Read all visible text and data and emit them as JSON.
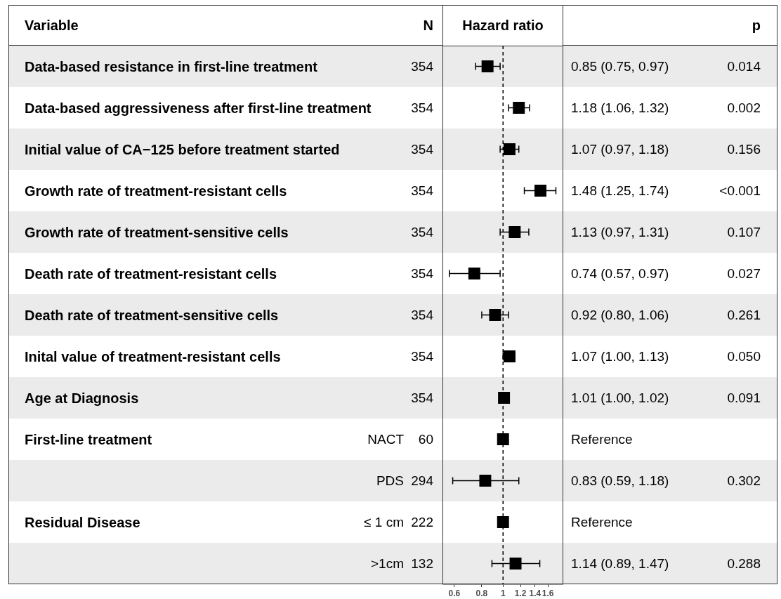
{
  "chart_data": {
    "type": "scatter",
    "orientation": "horizontal",
    "xlabel": "Hazard ratio",
    "ylabel": "Variable",
    "categories": [
      "Data-based resistance in first-line treatment",
      "Data-based aggressiveness after first-line treatment",
      "Initial value of CA−125 before treatment started",
      "Growth rate of treatment-resistant cells",
      "Growth rate of treatment-sensitive cells",
      "Death rate of treatment-resistant cells",
      "Death rate of treatment-sensitive cells",
      "Inital value of treatment-resistant cells",
      "Age at Diagnosis",
      "First-line treatment",
      null,
      "Residual Disease",
      null
    ],
    "y2_categories": [
      null,
      null,
      null,
      null,
      null,
      null,
      null,
      null,
      null,
      "NACT",
      "PDS",
      "≤ 1 cm",
      ">1cm"
    ],
    "series": [
      {
        "color": "#000000",
        "values": [
          0.85,
          1.18,
          1.07,
          1.48,
          1.13,
          0.74,
          0.92,
          1.07,
          1.01,
          1,
          0.83,
          1,
          1.14
        ],
        "errors": [
          [
            0.75,
            0.97
          ],
          [
            1.06,
            1.32
          ],
          [
            0.97,
            1.18
          ],
          [
            1.25,
            1.74
          ],
          [
            0.97,
            1.31
          ],
          [
            0.57,
            0.97
          ],
          [
            0.8,
            1.06
          ],
          [
            1.0,
            1.13
          ],
          [
            1.0,
            1.02
          ],
          null,
          [
            0.59,
            1.18
          ],
          null,
          [
            0.89,
            1.47
          ]
        ]
      }
    ],
    "cell_labels": [
      [
        "354",
        "0.85 (0.75, 0.97)",
        "0.014"
      ],
      [
        "354",
        "1.18 (1.06, 1.32)",
        "0.002"
      ],
      [
        "354",
        "1.07 (0.97, 1.18)",
        "0.156"
      ],
      [
        "354",
        "1.48 (1.25, 1.74)",
        "<0.001"
      ],
      [
        "354",
        "1.13 (0.97, 1.31)",
        "0.107"
      ],
      [
        "354",
        "0.74 (0.57, 0.97)",
        "0.027"
      ],
      [
        "354",
        "0.92 (0.80, 1.06)",
        "0.261"
      ],
      [
        "354",
        "1.07 (1.00, 1.13)",
        "0.050"
      ],
      [
        "354",
        "1.01 (1.00, 1.02)",
        "0.091"
      ],
      [
        "60",
        "Reference",
        null
      ],
      [
        "294",
        "0.83 (0.59, 1.18)",
        "0.302"
      ],
      [
        "222",
        "Reference",
        null
      ],
      [
        "132",
        "1.14 (0.89, 1.47)",
        "0.288"
      ]
    ],
    "annotations": [
      "N",
      "p"
    ],
    "marker": "square",
    "log": "x",
    "xlim": [
      0.53,
      1.88
    ],
    "xticks": [
      0.6,
      0.8,
      1,
      1.2,
      1.4,
      1.6
    ],
    "ref_lines": [
      {
        "axis": "x",
        "value": 1,
        "line_style": "dashed",
        "color": "#000000"
      }
    ]
  }
}
